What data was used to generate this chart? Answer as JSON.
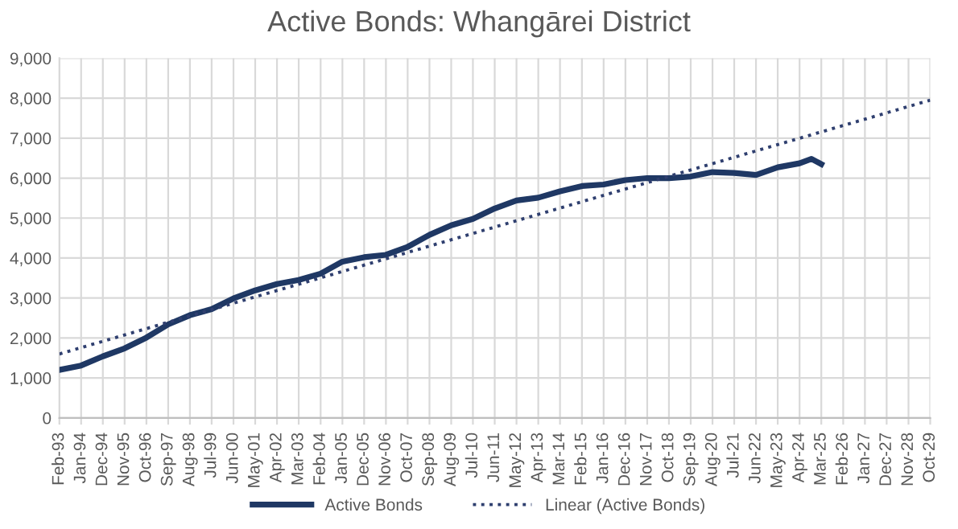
{
  "chart_data": {
    "type": "line",
    "title": "Active Bonds: Whangārei District",
    "series": [
      {
        "name": "Active Bonds",
        "color": "#1f3864",
        "line_style": "solid",
        "x": [
          "1993-02",
          "1994-01",
          "1994-12",
          "1995-11",
          "1996-10",
          "1997-09",
          "1998-08",
          "1999-07",
          "2000-06",
          "2001-05",
          "2002-04",
          "2003-03",
          "2004-02",
          "2005-01",
          "2005-12",
          "2006-11",
          "2007-10",
          "2008-09",
          "2009-08",
          "2010-07",
          "2011-06",
          "2012-05",
          "2013-04",
          "2014-03",
          "2015-02",
          "2016-01",
          "2016-12",
          "2017-11",
          "2018-10",
          "2019-09",
          "2020-08",
          "2021-07",
          "2022-06",
          "2023-05",
          "2024-04",
          "2024-10",
          "2025-03"
        ],
        "values": [
          1200,
          1310,
          1540,
          1740,
          2010,
          2340,
          2570,
          2720,
          2990,
          3190,
          3350,
          3450,
          3610,
          3910,
          4020,
          4080,
          4280,
          4580,
          4820,
          4980,
          5240,
          5440,
          5510,
          5670,
          5800,
          5840,
          5950,
          6000,
          6000,
          6040,
          6150,
          6130,
          6080,
          6270,
          6370,
          6480,
          6350
        ]
      },
      {
        "name": "Linear (Active Bonds)",
        "color": "#2f3f6f",
        "line_style": "dotted",
        "x": [
          "1993-02",
          "2029-10"
        ],
        "values": [
          1600,
          7950
        ]
      }
    ],
    "xlim": [
      "1993-02",
      "2029-10"
    ],
    "xticks": [
      {
        "value": "1993-02",
        "label": "Feb-93"
      },
      {
        "value": "1994-01",
        "label": "Jan-94"
      },
      {
        "value": "1994-12",
        "label": "Dec-94"
      },
      {
        "value": "1995-11",
        "label": "Nov-95"
      },
      {
        "value": "1996-10",
        "label": "Oct-96"
      },
      {
        "value": "1997-09",
        "label": "Sep-97"
      },
      {
        "value": "1998-08",
        "label": "Aug-98"
      },
      {
        "value": "1999-07",
        "label": "Jul-99"
      },
      {
        "value": "2000-06",
        "label": "Jun-00"
      },
      {
        "value": "2001-05",
        "label": "May-01"
      },
      {
        "value": "2002-04",
        "label": "Apr-02"
      },
      {
        "value": "2003-03",
        "label": "Mar-03"
      },
      {
        "value": "2004-02",
        "label": "Feb-04"
      },
      {
        "value": "2005-01",
        "label": "Jan-05"
      },
      {
        "value": "2005-12",
        "label": "Dec-05"
      },
      {
        "value": "2006-11",
        "label": "Nov-06"
      },
      {
        "value": "2007-10",
        "label": "Oct-07"
      },
      {
        "value": "2008-09",
        "label": "Sep-08"
      },
      {
        "value": "2009-08",
        "label": "Aug-09"
      },
      {
        "value": "2010-07",
        "label": "Jul-10"
      },
      {
        "value": "2011-06",
        "label": "Jun-11"
      },
      {
        "value": "2012-05",
        "label": "May-12"
      },
      {
        "value": "2013-04",
        "label": "Apr-13"
      },
      {
        "value": "2014-03",
        "label": "Mar-14"
      },
      {
        "value": "2015-02",
        "label": "Feb-15"
      },
      {
        "value": "2016-01",
        "label": "Jan-16"
      },
      {
        "value": "2016-12",
        "label": "Dec-16"
      },
      {
        "value": "2017-11",
        "label": "Nov-17"
      },
      {
        "value": "2018-10",
        "label": "Oct-18"
      },
      {
        "value": "2019-09",
        "label": "Sep-19"
      },
      {
        "value": "2020-08",
        "label": "Aug-20"
      },
      {
        "value": "2021-07",
        "label": "Jul-21"
      },
      {
        "value": "2022-06",
        "label": "Jun-22"
      },
      {
        "value": "2023-05",
        "label": "May-23"
      },
      {
        "value": "2024-04",
        "label": "Apr-24"
      },
      {
        "value": "2025-03",
        "label": "Mar-25"
      },
      {
        "value": "2026-02",
        "label": "Feb-26"
      },
      {
        "value": "2027-01",
        "label": "Jan-27"
      },
      {
        "value": "2027-12",
        "label": "Dec-27"
      },
      {
        "value": "2028-11",
        "label": "Nov-28"
      },
      {
        "value": "2029-10",
        "label": "Oct-29"
      }
    ],
    "ylim": [
      0,
      9000
    ],
    "yticks": [
      0,
      {
        "value": 1000,
        "label": "1,000"
      },
      {
        "value": 2000,
        "label": "2,000"
      },
      {
        "value": 3000,
        "label": "3,000"
      },
      {
        "value": 4000,
        "label": "4,000"
      },
      {
        "value": 5000,
        "label": "5,000"
      },
      {
        "value": 6000,
        "label": "6,000"
      },
      {
        "value": 7000,
        "label": "7,000"
      },
      {
        "value": 8000,
        "label": "8,000"
      },
      {
        "value": 9000,
        "label": "9,000"
      }
    ],
    "grid": true,
    "legend": "bottom"
  }
}
